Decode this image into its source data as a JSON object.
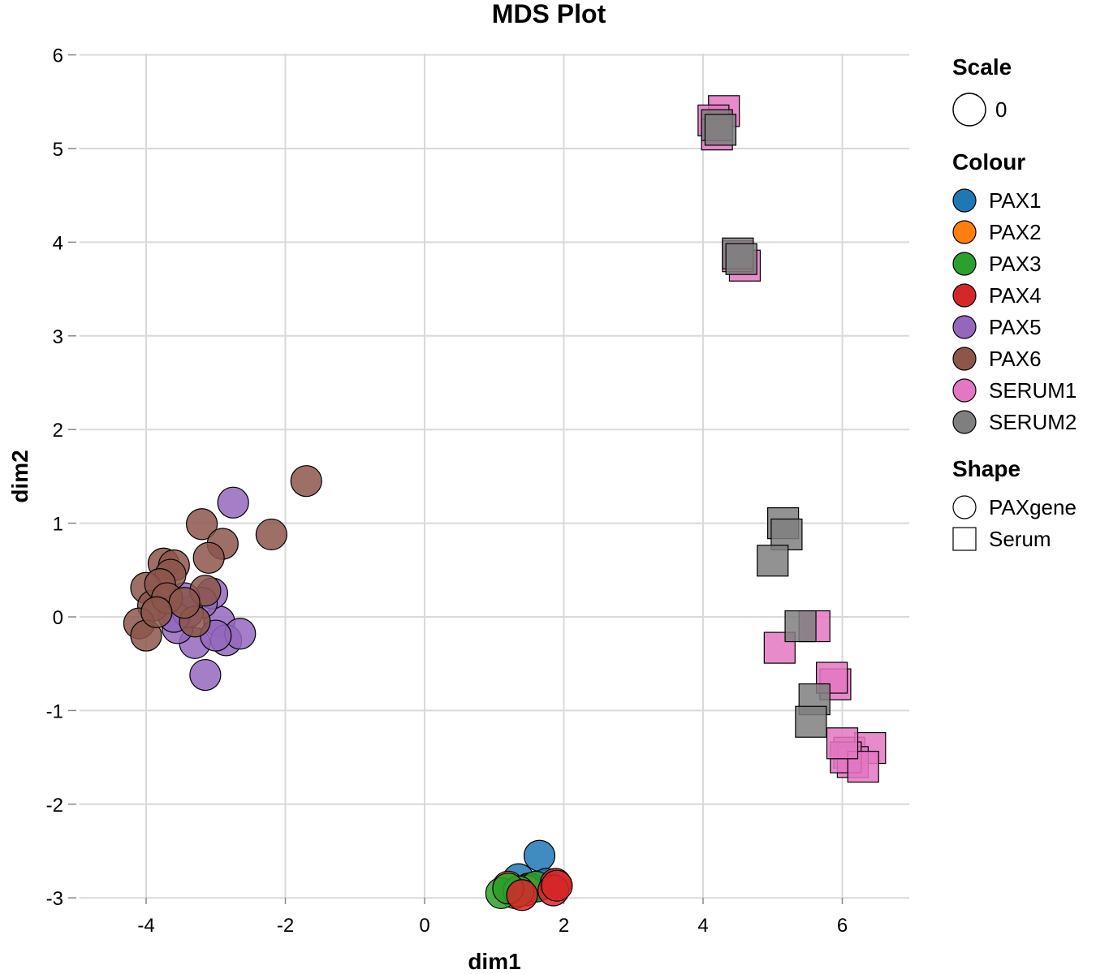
{
  "chart_data": {
    "type": "scatter",
    "title": "MDS Plot",
    "xlabel": "dim1",
    "ylabel": "dim2",
    "xlim": [
      -5,
      7
    ],
    "ylim": [
      -3.1,
      6.1
    ],
    "x_ticks": [
      -4,
      -2,
      0,
      2,
      4,
      6
    ],
    "y_ticks": [
      -3,
      -2,
      -1,
      0,
      1,
      2,
      3,
      4,
      5,
      6
    ],
    "grid": true,
    "legend_position": "right",
    "legend": {
      "scale": {
        "title": "Scale",
        "items": [
          {
            "label": "0"
          }
        ]
      },
      "colour": {
        "title": "Colour",
        "items": [
          {
            "label": "PAX1",
            "color": "#1f77b4"
          },
          {
            "label": "PAX2",
            "color": "#ff7f0e"
          },
          {
            "label": "PAX3",
            "color": "#2ca02c"
          },
          {
            "label": "PAX4",
            "color": "#d62728"
          },
          {
            "label": "PAX5",
            "color": "#9467bd"
          },
          {
            "label": "PAX6",
            "color": "#8c564b"
          },
          {
            "label": "SERUM1",
            "color": "#e377c2"
          },
          {
            "label": "SERUM2",
            "color": "#7f7f7f"
          }
        ]
      },
      "shape": {
        "title": "Shape",
        "items": [
          {
            "label": "PAXgene",
            "shape": "circle"
          },
          {
            "label": "Serum",
            "shape": "square"
          }
        ]
      }
    },
    "series": [
      {
        "name": "PAX1",
        "shape": "circle",
        "color": "#1f77b4",
        "x": [
          1.65,
          1.35,
          1.75,
          1.5
        ],
        "y": [
          -2.55,
          -2.8,
          -2.85,
          -2.9
        ]
      },
      {
        "name": "PAX2",
        "shape": "circle",
        "color": "#ff7f0e",
        "x": [
          1.2,
          1.45,
          1.3
        ],
        "y": [
          -2.88,
          -2.92,
          -2.95
        ]
      },
      {
        "name": "PAX3",
        "shape": "circle",
        "color": "#2ca02c",
        "x": [
          1.1,
          1.6,
          1.35,
          1.2
        ],
        "y": [
          -2.95,
          -2.88,
          -2.93,
          -2.9
        ]
      },
      {
        "name": "PAX4",
        "shape": "circle",
        "color": "#d62728",
        "x": [
          1.88,
          1.4,
          1.85,
          1.9
        ],
        "y": [
          -2.85,
          -2.97,
          -2.92,
          -2.87
        ]
      },
      {
        "name": "PAX5",
        "shape": "circle",
        "color": "#9467bd",
        "x": [
          -2.75,
          -3.15,
          -2.95,
          -2.85,
          -2.65,
          -3.3,
          -3.55,
          -3.05,
          -3.2,
          -3.4,
          -3.45,
          -3.0,
          -3.6
        ],
        "y": [
          1.22,
          -0.62,
          -0.05,
          -0.25,
          -0.18,
          -0.28,
          -0.12,
          0.25,
          0.15,
          0.05,
          0.2,
          -0.2,
          0.0
        ]
      },
      {
        "name": "PAX6",
        "shape": "circle",
        "color": "#8c564b",
        "x": [
          -1.7,
          -2.2,
          -3.2,
          -2.9,
          -3.1,
          -3.75,
          -3.6,
          -3.65,
          -4.0,
          -3.9,
          -3.8,
          -4.1,
          -4.0,
          -3.7,
          -3.3,
          -3.15,
          -3.45,
          -3.85
        ],
        "y": [
          1.45,
          0.88,
          0.99,
          0.78,
          0.63,
          0.57,
          0.55,
          0.45,
          0.31,
          0.12,
          0.35,
          -0.07,
          -0.2,
          0.2,
          -0.05,
          0.28,
          0.15,
          0.05
        ]
      },
      {
        "name": "SERUM1",
        "shape": "square",
        "color": "#e377c2",
        "x": [
          4.3,
          4.15,
          4.2,
          4.6,
          4.5,
          5.6,
          5.1,
          5.9,
          5.85,
          6.1,
          6.4,
          6.15,
          6.05,
          6.3,
          6.0
        ],
        "y": [
          5.4,
          5.3,
          5.15,
          3.75,
          3.85,
          -0.1,
          -0.33,
          -0.72,
          -0.65,
          -1.45,
          -1.4,
          -1.55,
          -1.5,
          -1.6,
          -1.35
        ]
      },
      {
        "name": "SERUM2",
        "shape": "square",
        "color": "#7f7f7f",
        "x": [
          4.2,
          4.25,
          4.5,
          4.55,
          5.15,
          5.2,
          5.0,
          5.4,
          5.6,
          5.55
        ],
        "y": [
          5.25,
          5.2,
          3.88,
          3.82,
          1.0,
          0.88,
          0.6,
          -0.1,
          -0.88,
          -1.12
        ]
      }
    ]
  }
}
